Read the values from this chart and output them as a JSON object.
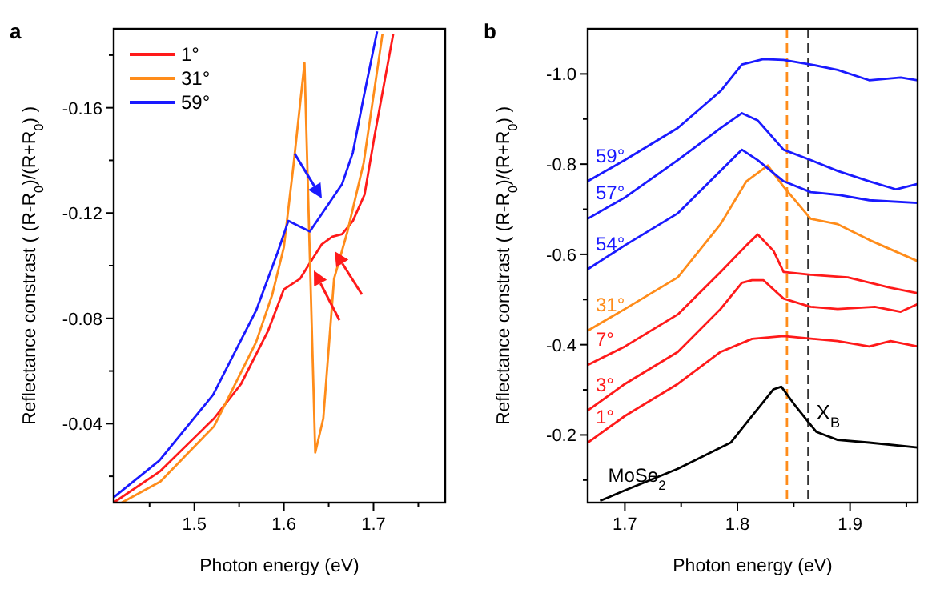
{
  "chart_data": [
    {
      "type": "line",
      "title": "a",
      "xlabel": "Photon energy (eV)",
      "ylabel": "Reflectance constrast ( (R-R$_{0}$)/(R+R$_{0}$) )",
      "xlim": [
        1.41,
        1.78
      ],
      "ylim": [
        -0.01,
        -0.19
      ],
      "xticks": [
        {
          "value": 1.45,
          "label": null
        },
        1.5,
        {
          "value": 1.55,
          "label": null
        },
        1.6,
        {
          "value": 1.65,
          "label": null
        },
        1.7,
        {
          "value": 1.75,
          "label": null
        }
      ],
      "yticks": [
        {
          "value": -0.02,
          "label": null
        },
        -0.04,
        {
          "value": -0.06,
          "label": null
        },
        -0.08,
        {
          "value": -0.1,
          "label": null
        },
        -0.12,
        {
          "value": -0.14,
          "label": null
        },
        -0.16,
        {
          "value": -0.18,
          "label": null
        }
      ],
      "legend": "top left",
      "series": [
        {
          "name": "1°",
          "color": "#ff1a1a",
          "x": [
            1.41,
            1.462,
            1.522,
            1.552,
            1.582,
            1.6,
            1.618,
            1.629,
            1.642,
            1.654,
            1.665,
            1.677,
            1.69,
            1.701,
            1.722
          ],
          "values": [
            -0.01,
            -0.022,
            -0.042,
            -0.055,
            -0.075,
            -0.091,
            -0.095,
            -0.101,
            -0.108,
            -0.111,
            -0.112,
            -0.117,
            -0.127,
            -0.149,
            -0.188
          ]
        },
        {
          "name": "31°",
          "color": "#ff8c1a",
          "x": [
            1.419,
            1.462,
            1.522,
            1.569,
            1.587,
            1.6,
            1.611,
            1.623,
            1.635,
            1.644,
            1.656,
            1.671,
            1.689,
            1.71
          ],
          "values": [
            -0.01,
            -0.018,
            -0.039,
            -0.071,
            -0.089,
            -0.107,
            -0.139,
            -0.177,
            -0.029,
            -0.042,
            -0.095,
            -0.113,
            -0.139,
            -0.188
          ]
        },
        {
          "name": "59°",
          "color": "#1a1aff",
          "x": [
            1.41,
            1.461,
            1.521,
            1.569,
            1.593,
            1.605,
            1.617,
            1.629,
            1.641,
            1.653,
            1.665,
            1.677,
            1.689,
            1.704
          ],
          "values": [
            -0.012,
            -0.026,
            -0.051,
            -0.083,
            -0.105,
            -0.117,
            -0.115,
            -0.113,
            -0.119,
            -0.125,
            -0.131,
            -0.143,
            -0.164,
            -0.189
          ]
        }
      ]
    },
    {
      "type": "line",
      "title": "b",
      "xlabel": "Photon energy (eV)",
      "ylabel": "Reflectance constrast ( (R-R$_{0}$)/(R+R$_{0}$) )",
      "xlim": [
        1.667,
        1.96
      ],
      "ylim": [
        -0.05,
        -1.1
      ],
      "xticks": [
        1.7,
        {
          "value": 1.75,
          "label": null
        },
        1.8,
        {
          "value": 1.85,
          "label": null
        },
        1.9,
        {
          "value": 1.95,
          "label": null
        }
      ],
      "yticks": [
        {
          "value": -0.1,
          "label": null
        },
        -0.2,
        {
          "value": -0.3,
          "label": null
        },
        -0.4,
        {
          "value": -0.5,
          "label": null
        },
        -0.6,
        {
          "value": -0.7,
          "label": null
        },
        -0.8,
        {
          "value": -0.9,
          "label": null
        },
        {
          "value": -1,
          "label": "-1.0"
        }
      ],
      "ref_lines": [
        {
          "axis": "x",
          "value": 1.844,
          "label": null,
          "color": "#ff8c1a",
          "line_style": "dashed"
        },
        {
          "axis": "x",
          "value": 1.863,
          "label": "X$_{B}$",
          "color": "#333333",
          "line_style": "dashed"
        }
      ],
      "series": [
        {
          "name": "MoSe$_{2}$",
          "color": "#000000",
          "x": [
            1.678,
            1.7,
            1.747,
            1.794,
            1.813,
            1.832,
            1.839,
            1.851,
            1.87,
            1.889,
            1.917,
            1.96
          ],
          "values": [
            -0.054,
            -0.077,
            -0.125,
            -0.183,
            -0.242,
            -0.301,
            -0.307,
            -0.266,
            -0.207,
            -0.189,
            -0.183,
            -0.172
          ]
        },
        {
          "name": "1°",
          "color": "#ff1a1a",
          "x": [
            1.667,
            1.7,
            1.747,
            1.785,
            1.813,
            1.841,
            1.889,
            1.917,
            1.936,
            1.96
          ],
          "values": [
            -0.183,
            -0.242,
            -0.313,
            -0.384,
            -0.413,
            -0.419,
            -0.408,
            -0.396,
            -0.408,
            -0.396
          ]
        },
        {
          "name": "3°",
          "color": "#ff1a1a",
          "x": [
            1.667,
            1.7,
            1.747,
            1.785,
            1.804,
            1.813,
            1.823,
            1.841,
            1.865,
            1.889,
            1.922,
            1.945,
            1.96
          ],
          "values": [
            -0.254,
            -0.313,
            -0.384,
            -0.479,
            -0.537,
            -0.543,
            -0.543,
            -0.502,
            -0.484,
            -0.479,
            -0.484,
            -0.473,
            -0.49
          ]
        },
        {
          "name": "7°",
          "color": "#ff1a1a",
          "x": [
            1.667,
            1.7,
            1.747,
            1.785,
            1.808,
            1.818,
            1.832,
            1.841,
            1.865,
            1.898,
            1.936,
            1.96
          ],
          "values": [
            -0.355,
            -0.396,
            -0.467,
            -0.561,
            -0.62,
            -0.644,
            -0.608,
            -0.561,
            -0.555,
            -0.549,
            -0.526,
            -0.514
          ]
        },
        {
          "name": "31°",
          "color": "#ff8c1a",
          "x": [
            1.667,
            1.7,
            1.747,
            1.785,
            1.808,
            1.827,
            1.841,
            1.865,
            1.889,
            1.917,
            1.96
          ],
          "values": [
            -0.431,
            -0.479,
            -0.549,
            -0.667,
            -0.762,
            -0.797,
            -0.75,
            -0.679,
            -0.667,
            -0.632,
            -0.585
          ]
        },
        {
          "name": "54°",
          "color": "#1a1aff",
          "x": [
            1.667,
            1.7,
            1.747,
            1.785,
            1.804,
            1.818,
            1.841,
            1.865,
            1.889,
            1.917,
            1.96
          ],
          "values": [
            -0.567,
            -0.62,
            -0.691,
            -0.785,
            -0.832,
            -0.809,
            -0.762,
            -0.738,
            -0.732,
            -0.72,
            -0.714
          ]
        },
        {
          "name": "57°",
          "color": "#1a1aff",
          "x": [
            1.667,
            1.7,
            1.747,
            1.785,
            1.804,
            1.818,
            1.841,
            1.865,
            1.889,
            1.917,
            1.941,
            1.96
          ],
          "values": [
            -0.679,
            -0.726,
            -0.809,
            -0.88,
            -0.913,
            -0.897,
            -0.832,
            -0.809,
            -0.785,
            -0.762,
            -0.744,
            -0.756
          ]
        },
        {
          "name": "59°",
          "color": "#1a1aff",
          "x": [
            1.667,
            1.7,
            1.747,
            1.785,
            1.804,
            1.823,
            1.841,
            1.865,
            1.889,
            1.917,
            1.945,
            1.96
          ],
          "values": [
            -0.762,
            -0.809,
            -0.88,
            -0.962,
            -1.021,
            -1.033,
            -1.031,
            -1.021,
            -1.009,
            -0.986,
            -0.992,
            -0.986
          ]
        }
      ]
    }
  ]
}
